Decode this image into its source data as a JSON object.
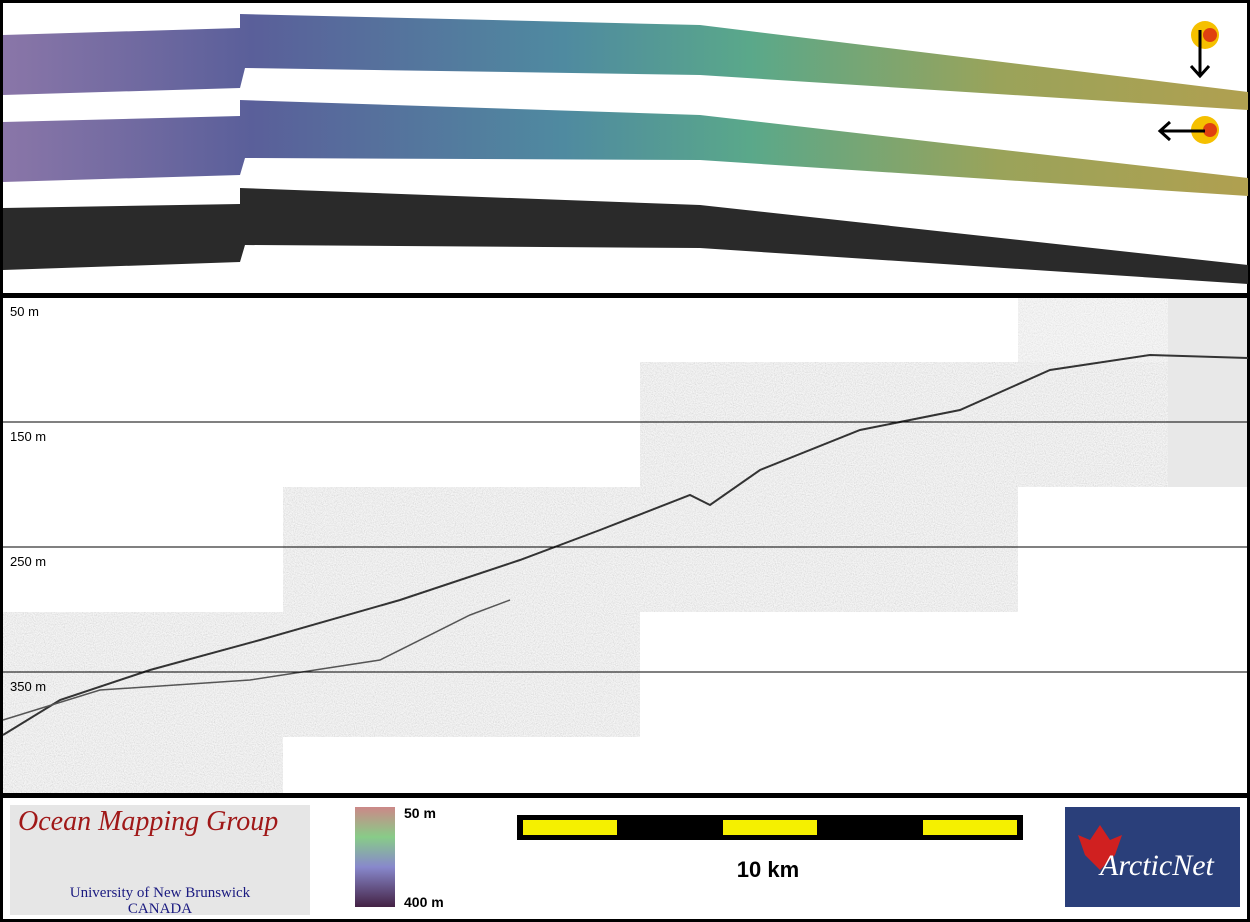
{
  "profile": {
    "depth_labels": [
      "50 m",
      "150 m",
      "250 m",
      "350 m"
    ]
  },
  "footer": {
    "logo_title": "Ocean Mapping Group",
    "logo_line1": "University of New Brunswick",
    "logo_line2": "CANADA",
    "colorbar_top": "50 m",
    "colorbar_bottom": "400 m",
    "scale_label": "10 km",
    "partner_logo": "ArcticNet"
  }
}
